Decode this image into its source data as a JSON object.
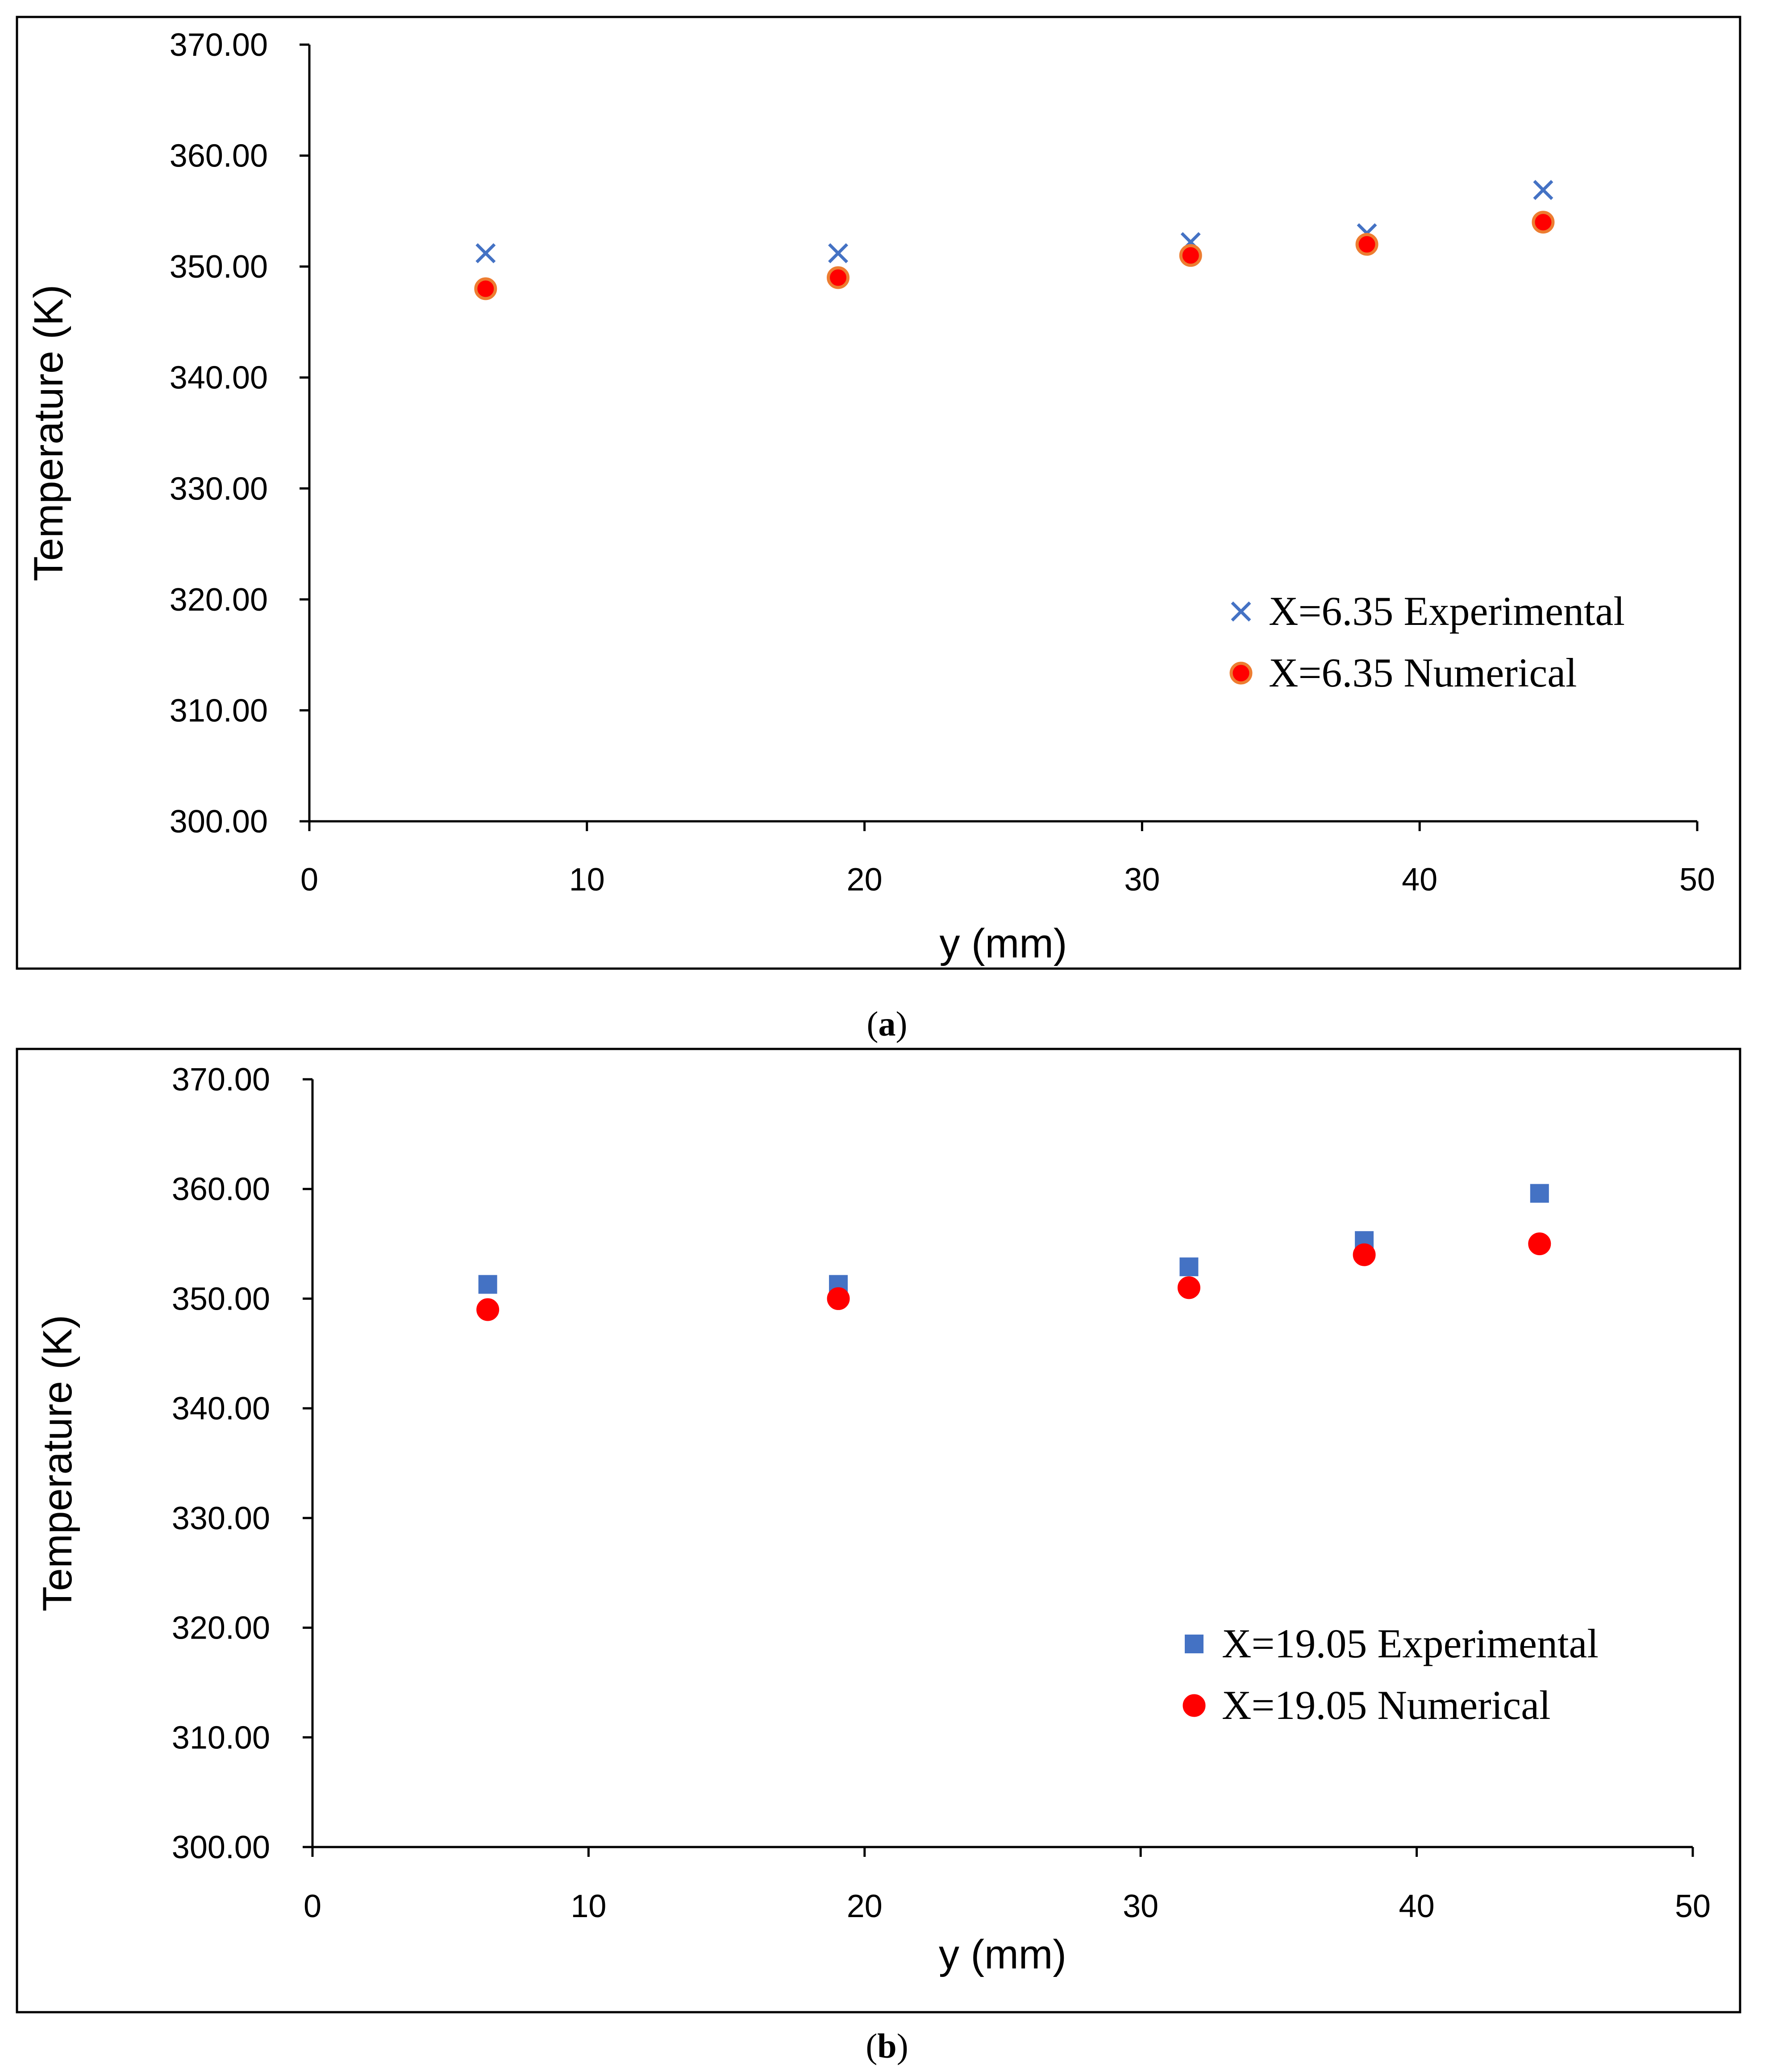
{
  "chart_data": [
    {
      "type": "scatter",
      "panel": "a",
      "caption_letter": "a",
      "xlabel": "y (mm)",
      "ylabel": "Temperature (K)",
      "xlim": [
        0,
        50
      ],
      "ylim": [
        300,
        370
      ],
      "x_ticks": [
        0,
        10,
        20,
        30,
        40,
        50
      ],
      "y_ticks": [
        "300.00",
        "310.00",
        "320.00",
        "330.00",
        "340.00",
        "350.00",
        "360.00",
        "370.00"
      ],
      "grid": false,
      "legend_position": "center-right",
      "series": [
        {
          "name": "X=6.35 Experimental",
          "marker": "x",
          "color": "#4472C4",
          "x": [
            6.35,
            19.05,
            31.75,
            38.1,
            44.45
          ],
          "y": [
            351.2,
            351.2,
            352.2,
            353.0,
            356.9
          ]
        },
        {
          "name": "X=6.35 Numerical",
          "marker": "circle",
          "color": "#FF0000",
          "stroke": "#ED7D31",
          "x": [
            6.35,
            19.05,
            31.75,
            38.1,
            44.45
          ],
          "y": [
            348.0,
            349.0,
            351.0,
            352.0,
            354.0
          ]
        }
      ]
    },
    {
      "type": "scatter",
      "panel": "b",
      "caption_letter": "b",
      "xlabel": "y (mm)",
      "ylabel": "Temperature (K)",
      "xlim": [
        0,
        50
      ],
      "ylim": [
        300,
        370
      ],
      "x_ticks": [
        0,
        10,
        20,
        30,
        40,
        50
      ],
      "y_ticks": [
        "300.00",
        "310.00",
        "320.00",
        "330.00",
        "340.00",
        "350.00",
        "360.00",
        "370.00"
      ],
      "grid": false,
      "legend_position": "center-right",
      "series": [
        {
          "name": "X=19.05 Experimental",
          "marker": "square",
          "color": "#4472C4",
          "x": [
            6.35,
            19.05,
            31.75,
            38.1,
            44.45
          ],
          "y": [
            351.3,
            351.3,
            352.9,
            355.3,
            359.6
          ]
        },
        {
          "name": "X=19.05 Numerical",
          "marker": "circle",
          "color": "#FF0000",
          "stroke": "#FF0000",
          "x": [
            6.35,
            19.05,
            31.75,
            38.1,
            44.45
          ],
          "y": [
            349.0,
            350.0,
            351.0,
            354.0,
            355.0
          ]
        }
      ]
    }
  ]
}
